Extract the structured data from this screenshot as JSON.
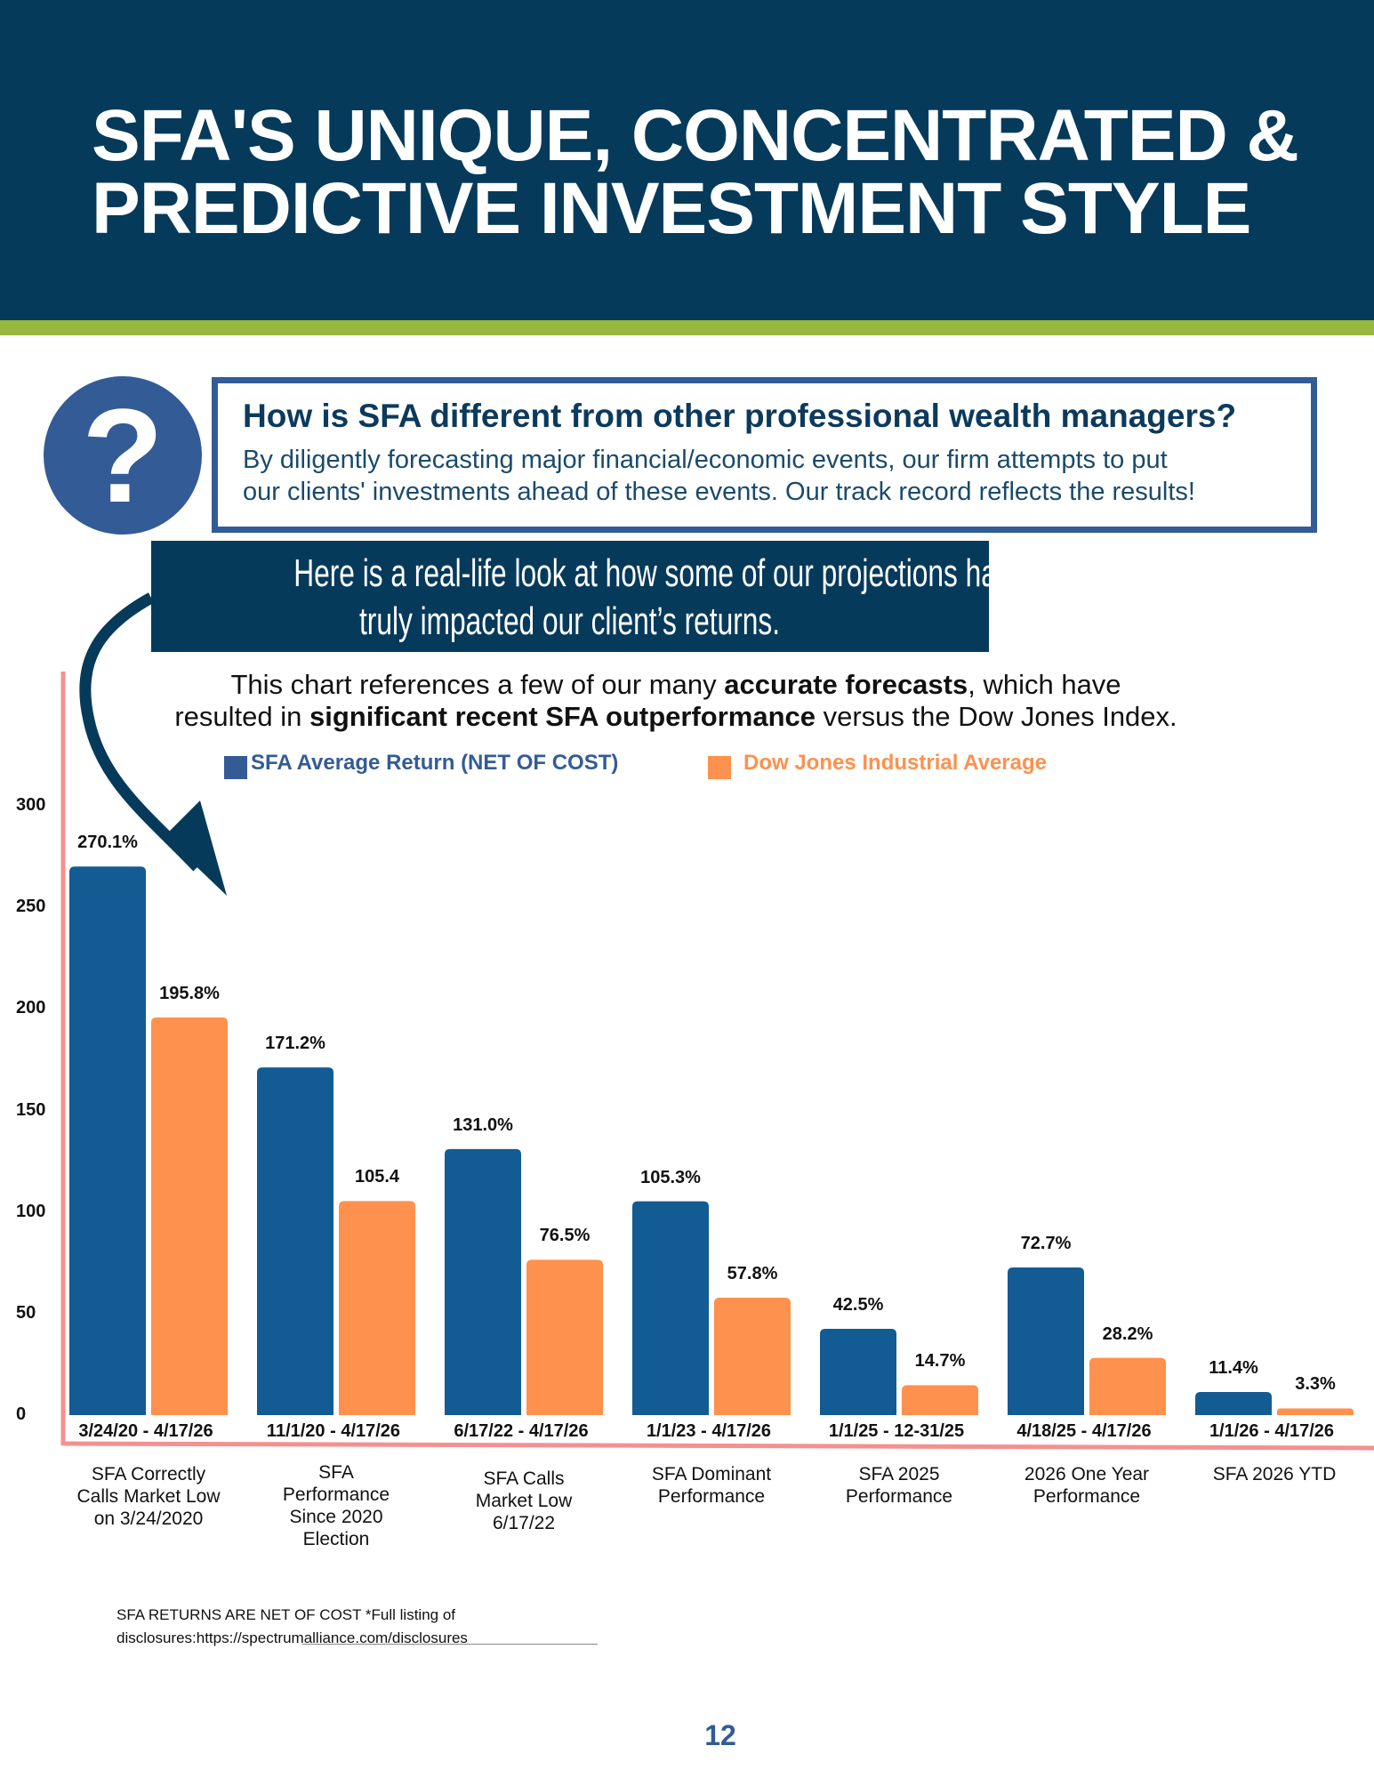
{
  "header": {
    "title_line1": "SFA'S UNIQUE, CONCENTRATED &",
    "title_line2": "PREDICTIVE INVESTMENT STYLE"
  },
  "question": {
    "icon": "question-mark-icon",
    "symbol": "?",
    "heading": "How is SFA different from other professional wealth managers?",
    "body_line1": "By diligently forecasting major financial/economic events, our firm attempts to put",
    "body_line2": "our clients' investments ahead of these events. Our track record reflects the results!"
  },
  "callout": {
    "line1": "Here is a real-life look at how some of our projections have",
    "line2": "truly impacted our client’s returns."
  },
  "subtitle": {
    "p1": "This chart references a few of our many ",
    "b1": "accurate forecasts",
    "p2": ", which have",
    "p3": "resulted in ",
    "b2": "significant recent SFA outperformance",
    "p4": " versus the Dow Jones Index."
  },
  "colors": {
    "header": "#063a5b",
    "accent": "#97b83e",
    "sfa": "#135b93",
    "dow": "#fd914d",
    "axis": "#f59090"
  },
  "chart_data": {
    "type": "bar",
    "ylim": [
      0,
      300
    ],
    "yticks": [
      "0",
      "50",
      "100",
      "150",
      "200",
      "250",
      "300"
    ],
    "legend": [
      "SFA Average Return (NET OF COST)",
      "Dow Jones Industrial Average"
    ],
    "periods": [
      "3/24/20 - 4/17/26",
      "11/1/20 - 4/17/26",
      "6/17/22 - 4/17/26",
      "1/1/23 - 4/17/26",
      "1/1/25 - 12-31/25",
      "4/18/25 - 4/17/26",
      "1/1/26 - 4/17/26"
    ],
    "categories": [
      "SFA Correctly Calls Market Low on 3/24/2020",
      "SFA Performance Since 2020 Election",
      "SFA Calls Market Low 6/17/22",
      "SFA Dominant Performance",
      "SFA 2025 Performance",
      "2026 One  Year Performance",
      "SFA 2026 YTD"
    ],
    "series": [
      {
        "name": "SFA Average Return (NET OF COST)",
        "values": [
          270.1,
          171.2,
          131.0,
          105.3,
          42.5,
          72.7,
          11.4
        ],
        "labels": [
          "270.1%",
          "171.2%",
          "131.0%",
          "105.3%",
          "42.5%",
          "72.7%",
          "11.4%"
        ]
      },
      {
        "name": "Dow Jones Industrial Average",
        "values": [
          195.8,
          105.4,
          76.5,
          57.8,
          14.7,
          28.2,
          3.3
        ],
        "labels": [
          "195.8%",
          "105.4",
          "76.5%",
          "57.8%",
          "14.7%",
          "28.2%",
          "3.3%"
        ]
      }
    ]
  },
  "footnote": {
    "line1": "SFA RETURNS ARE NET OF COST *Full listing of",
    "line2": "disclosures:https://spectrumalliance.com/disclosures"
  },
  "page_number": "12"
}
